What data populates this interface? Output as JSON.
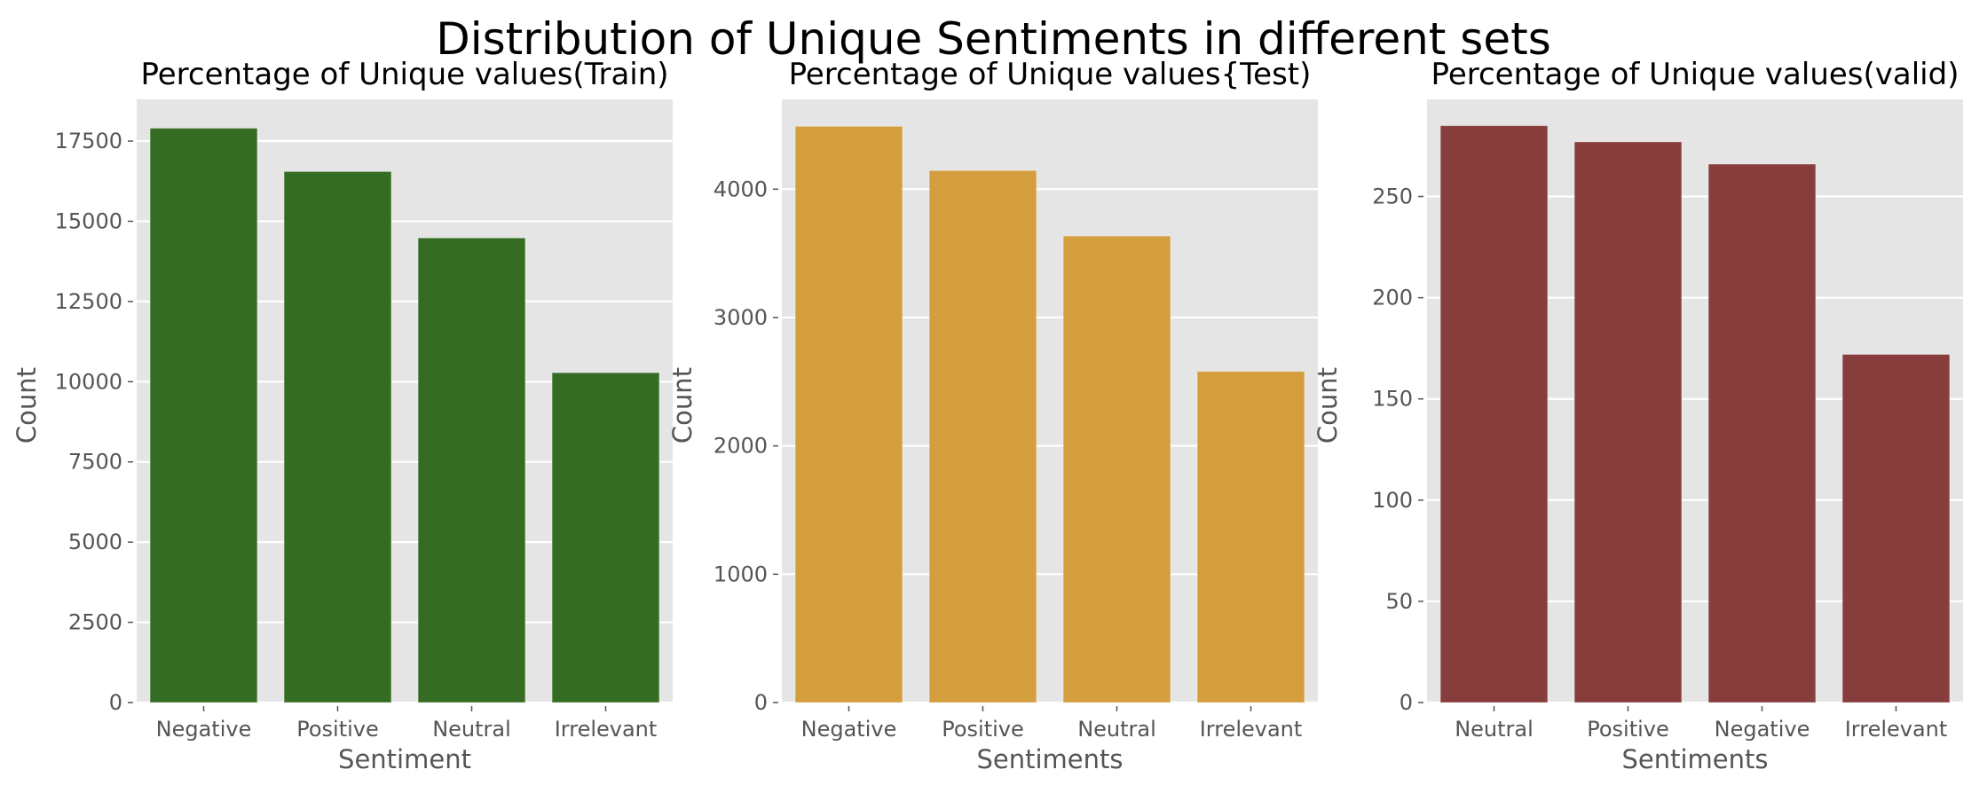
{
  "figure": {
    "title": "Distribution of Unique Sentiments in different sets",
    "style": {
      "plot_background": "#e5e5e5",
      "grid_color": "#ffffff",
      "tick_color": "#555555"
    }
  },
  "chart_data": [
    {
      "type": "bar",
      "title": "Percentage of Unique values(Train)",
      "xlabel": "Sentiment",
      "ylabel": "Count",
      "categories": [
        "Negative",
        "Positive",
        "Neutral",
        "Irrelevant"
      ],
      "values": [
        17900,
        16550,
        14480,
        10280
      ],
      "ylim": [
        0,
        18800
      ],
      "yticks": [
        0,
        2500,
        5000,
        7500,
        10000,
        12500,
        15000,
        17500
      ],
      "color": "#356c23",
      "grid": true
    },
    {
      "type": "bar",
      "title": "Percentage of Unique values{Test)",
      "xlabel": "Sentiments",
      "ylabel": "Count",
      "categories": [
        "Negative",
        "Positive",
        "Neutral",
        "Irrelevant"
      ],
      "values": [
        4490,
        4145,
        3635,
        2580
      ],
      "ylim": [
        0,
        4700
      ],
      "yticks": [
        0,
        1000,
        2000,
        3000,
        4000
      ],
      "color": "#d49e3f",
      "grid": true
    },
    {
      "type": "bar",
      "title": "Percentage of Unique values(valid)",
      "xlabel": "Sentiments",
      "ylabel": "Count",
      "categories": [
        "Neutral",
        "Positive",
        "Negative",
        "Irrelevant"
      ],
      "values": [
        285,
        277,
        266,
        172
      ],
      "ylim": [
        0,
        298
      ],
      "yticks": [
        0,
        50,
        100,
        150,
        200,
        250
      ],
      "color": "#883d3d",
      "grid": true
    }
  ]
}
